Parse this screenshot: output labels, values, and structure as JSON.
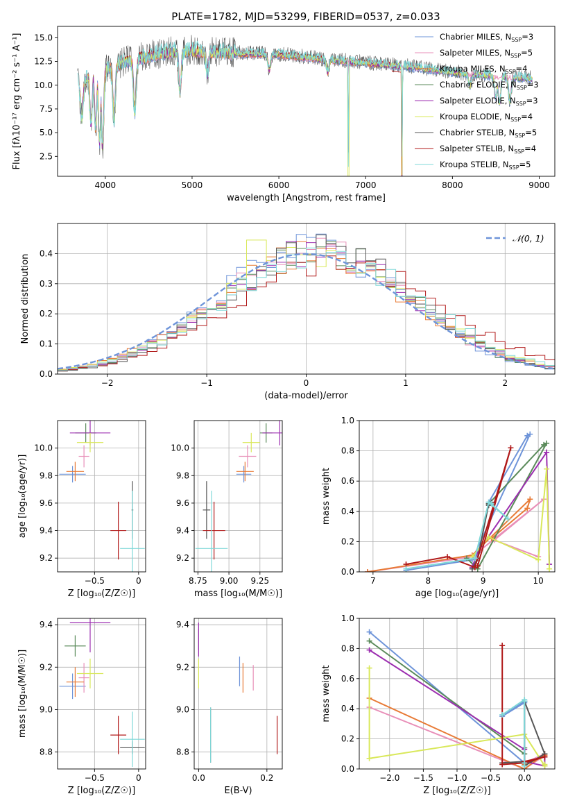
{
  "figure": {
    "title": "PLATE=1782, MJD=53299, FIBERID=0537, z=0.033"
  },
  "chart_data": [
    {
      "type": "line",
      "id": "spectrum",
      "title": "PLATE=1782, MJD=53299, FIBERID=0537, z=0.033",
      "xlabel": "wavelength [Angstrom, rest frame]",
      "ylabel": "Flux [fλ10⁻¹⁷ erg cm⁻² s⁻¹ A⁻¹]",
      "xlim": [
        3450,
        9180
      ],
      "ylim": [
        0.4,
        16.2
      ],
      "xticks": [
        4000,
        5000,
        6000,
        7000,
        8000,
        9000
      ],
      "yticks": [
        2.5,
        5.0,
        7.5,
        10.0,
        12.5,
        15.0
      ],
      "grid": false,
      "legend_position": "top-right",
      "legend": [
        {
          "name": "Chabrier MILES, N",
          "sub": "SSP",
          "suffix": "=3",
          "color": "#6e94d9"
        },
        {
          "name": "Salpeter MILES, N",
          "sub": "SSP",
          "suffix": "=5",
          "color": "#e88fb8"
        },
        {
          "name": "Kroupa MILES, N",
          "sub": "SSP",
          "suffix": "=4",
          "color": "#e87a35"
        },
        {
          "name": "Chabrier ELODIE, N",
          "sub": "SSP",
          "suffix": "=3",
          "color": "#5a8a5a"
        },
        {
          "name": "Salpeter ELODIE, N",
          "sub": "SSP",
          "suffix": "=3",
          "color": "#9c2eb0"
        },
        {
          "name": "Kroupa ELODIE, N",
          "sub": "SSP",
          "suffix": "=4",
          "color": "#d9e85a"
        },
        {
          "name": "Chabrier STELIB, N",
          "sub": "SSP",
          "suffix": "=5",
          "color": "#555555"
        },
        {
          "name": "Salpeter STELIB, N",
          "sub": "SSP",
          "suffix": "=4",
          "color": "#b01818"
        },
        {
          "name": "Kroupa STELIB, N",
          "sub": "SSP",
          "suffix": "=5",
          "color": "#7fd8d8"
        }
      ],
      "continuum": [
        [
          3700,
          9.5
        ],
        [
          3800,
          11
        ],
        [
          4000,
          11.8
        ],
        [
          4300,
          12.6
        ],
        [
          4700,
          13.4
        ],
        [
          5000,
          13.6
        ],
        [
          5300,
          13.4
        ],
        [
          5600,
          13.3
        ],
        [
          6000,
          13.2
        ],
        [
          6500,
          12.7
        ],
        [
          7000,
          12.3
        ],
        [
          7500,
          11.9
        ],
        [
          8000,
          11.3
        ],
        [
          8500,
          10.9
        ],
        [
          9000,
          10.6
        ],
        [
          9180,
          10.5
        ]
      ],
      "absorption": [
        [
          3730,
          6.5
        ],
        [
          3835,
          6.0
        ],
        [
          3889,
          5.5
        ],
        [
          3934,
          4.0
        ],
        [
          3968,
          3.5
        ],
        [
          4102,
          6.2
        ],
        [
          4340,
          7.0
        ],
        [
          4861,
          9.2
        ],
        [
          5175,
          11.2
        ],
        [
          5890,
          11.6
        ],
        [
          6563,
          11.4
        ],
        [
          6800,
          1.0
        ],
        [
          7420,
          0.4
        ],
        [
          8200,
          9.8
        ],
        [
          8500,
          8.5
        ],
        [
          8542,
          8.0
        ],
        [
          8662,
          8.2
        ]
      ]
    },
    {
      "type": "step",
      "id": "residuals",
      "xlabel": "(data-model)/error",
      "ylabel": "Normed distribution",
      "xlim": [
        -2.5,
        2.5
      ],
      "ylim": [
        0,
        0.5
      ],
      "xticks": [
        -2,
        -1,
        0,
        1,
        2
      ],
      "yticks": [
        0.0,
        0.1,
        0.2,
        0.3,
        0.4
      ],
      "grid": true,
      "bin_width": 0.1,
      "legend": [
        {
          "name": "𝒩(0, 1)",
          "color": "#6e94d9",
          "style": "dashed"
        }
      ]
    },
    {
      "type": "scatter",
      "id": "age-vs-Z",
      "xlabel": "Z [log₁₀(Z/Z☉)]",
      "ylabel": "age  [log₁₀(age/yr)]",
      "xlim": [
        -0.92,
        0.08
      ],
      "ylim": [
        9.1,
        10.2
      ],
      "xticks": [
        -0.5,
        0.0
      ],
      "yticks": [
        9.2,
        9.4,
        9.6,
        9.8,
        10.0
      ],
      "grid": true,
      "points": [
        {
          "x": -0.75,
          "y": 9.81,
          "xerr": 0.15,
          "yerr": 0.06,
          "color": "#6e94d9"
        },
        {
          "x": -0.62,
          "y": 9.94,
          "xerr": 0.06,
          "yerr": 0.08,
          "color": "#e88fb8"
        },
        {
          "x": -0.72,
          "y": 9.83,
          "xerr": 0.1,
          "yerr": 0.07,
          "color": "#e87a35"
        },
        {
          "x": -0.6,
          "y": 10.11,
          "xerr": 0.12,
          "yerr": 0.07,
          "color": "#5a8a5a"
        },
        {
          "x": -0.55,
          "y": 10.11,
          "xerr": 0.23,
          "yerr": 0.09,
          "color": "#9c2eb0"
        },
        {
          "x": -0.55,
          "y": 10.04,
          "xerr": 0.15,
          "yerr": 0.07,
          "color": "#d9e85a"
        },
        {
          "x": -0.07,
          "y": 9.55,
          "xerr": 0.01,
          "yerr": 0.21,
          "color": "#555555"
        },
        {
          "x": -0.23,
          "y": 9.4,
          "xerr": 0.09,
          "yerr": 0.21,
          "color": "#b01818"
        },
        {
          "x": -0.07,
          "y": 9.27,
          "xerr": 0.14,
          "yerr": 0.42,
          "color": "#7fd8d8"
        }
      ]
    },
    {
      "type": "scatter",
      "id": "age-vs-mass",
      "xlabel": "mass [log₁₀(M/M☉)]",
      "ylabel": "",
      "xlim": [
        8.72,
        9.43
      ],
      "ylim": [
        9.1,
        10.2
      ],
      "xticks": [
        8.75,
        9.0,
        9.25
      ],
      "yticks": [
        9.2,
        9.4,
        9.6,
        9.8,
        10.0
      ],
      "grid": true,
      "points": [
        {
          "x": 9.12,
          "y": 9.81,
          "xerr": 0.06,
          "yerr": 0.06,
          "color": "#6e94d9"
        },
        {
          "x": 9.15,
          "y": 9.94,
          "xerr": 0.07,
          "yerr": 0.08,
          "color": "#e88fb8"
        },
        {
          "x": 9.13,
          "y": 9.83,
          "xerr": 0.07,
          "yerr": 0.07,
          "color": "#e87a35"
        },
        {
          "x": 9.3,
          "y": 10.11,
          "xerr": 0.05,
          "yerr": 0.07,
          "color": "#5a8a5a"
        },
        {
          "x": 9.41,
          "y": 10.11,
          "xerr": 0.14,
          "yerr": 0.09,
          "color": "#9c2eb0"
        },
        {
          "x": 9.18,
          "y": 10.04,
          "xerr": 0.07,
          "yerr": 0.07,
          "color": "#d9e85a"
        },
        {
          "x": 8.82,
          "y": 9.55,
          "xerr": 0.03,
          "yerr": 0.21,
          "color": "#555555"
        },
        {
          "x": 8.88,
          "y": 9.4,
          "xerr": 0.09,
          "yerr": 0.21,
          "color": "#b01818"
        },
        {
          "x": 8.86,
          "y": 9.27,
          "xerr": 0.13,
          "yerr": 0.42,
          "color": "#7fd8d8"
        }
      ]
    },
    {
      "type": "line",
      "id": "weight-vs-age",
      "xlabel": "age  [log₁₀(age/yr)]",
      "ylabel": "mass weight",
      "xlim": [
        6.75,
        10.3
      ],
      "ylim": [
        0,
        1
      ],
      "xticks": [
        7,
        8,
        9,
        10
      ],
      "yticks": [
        0.0,
        0.2,
        0.4,
        0.6,
        0.8,
        1.0
      ],
      "grid": true,
      "series": [
        {
          "color": "#6e94d9",
          "x": [
            7.6,
            8.8,
            9.85,
            9.8,
            9.1
          ],
          "y": [
            0.01,
            0.08,
            0.91,
            0.9,
            0.46
          ]
        },
        {
          "color": "#e88fb8",
          "x": [
            6.9,
            8.8,
            10.1,
            9.2,
            10.0
          ],
          "y": [
            0.0,
            0.1,
            0.48,
            0.21,
            0.1
          ]
        },
        {
          "color": "#e87a35",
          "x": [
            6.9,
            8.8,
            9.85,
            9.8,
            9.15
          ],
          "y": [
            0.0,
            0.11,
            0.48,
            0.42,
            0.22
          ]
        },
        {
          "color": "#5a8a5a",
          "x": [
            8.7,
            8.9,
            10.15,
            10.1,
            9.1
          ],
          "y": [
            0.09,
            0.02,
            0.85,
            0.84,
            0.45
          ]
        },
        {
          "color": "#9c2eb0",
          "x": [
            8.8,
            8.9,
            10.15,
            10.2,
            10.15
          ],
          "y": [
            0.03,
            0.13,
            0.79,
            0.05,
            0.79
          ]
        },
        {
          "color": "#d9e85a",
          "x": [
            8.8,
            9.1,
            10.0,
            10.15,
            10.2
          ],
          "y": [
            0.1,
            0.23,
            0.08,
            0.68,
            0.02
          ]
        },
        {
          "color": "#555555",
          "x": [
            8.8,
            8.9,
            9.1,
            9.15,
            9.1
          ],
          "y": [
            0.02,
            0.09,
            0.45,
            0.46,
            0.44
          ]
        },
        {
          "color": "#b01818",
          "x": [
            7.6,
            8.35,
            8.85,
            9.5,
            8.9
          ],
          "y": [
            0.05,
            0.1,
            0.03,
            0.82,
            0.04
          ]
        },
        {
          "color": "#7fd8d8",
          "x": [
            7.6,
            8.85,
            9.1,
            9.45,
            9.15
          ],
          "y": [
            0.02,
            0.09,
            0.46,
            0.35,
            0.45
          ]
        }
      ]
    },
    {
      "type": "scatter",
      "id": "mass-vs-Z",
      "xlabel": "Z [log₁₀(Z/Z☉)]",
      "ylabel": "mass [log₁₀(M/M☉)]",
      "xlim": [
        -0.92,
        0.08
      ],
      "ylim": [
        8.72,
        9.43
      ],
      "xticks": [
        -0.5,
        0.0
      ],
      "yticks": [
        8.8,
        9.0,
        9.2,
        9.4
      ],
      "grid": true,
      "points": [
        {
          "x": -0.75,
          "y": 9.11,
          "xerr": 0.15,
          "yerr": 0.06,
          "color": "#6e94d9"
        },
        {
          "x": -0.62,
          "y": 9.15,
          "xerr": 0.06,
          "yerr": 0.07,
          "color": "#e88fb8"
        },
        {
          "x": -0.72,
          "y": 9.13,
          "xerr": 0.1,
          "yerr": 0.07,
          "color": "#e87a35"
        },
        {
          "x": -0.72,
          "y": 9.3,
          "xerr": 0.12,
          "yerr": 0.05,
          "color": "#5a8a5a"
        },
        {
          "x": -0.55,
          "y": 9.41,
          "xerr": 0.23,
          "yerr": 0.14,
          "color": "#9c2eb0"
        },
        {
          "x": -0.55,
          "y": 9.17,
          "xerr": 0.15,
          "yerr": 0.07,
          "color": "#d9e85a"
        },
        {
          "x": -0.07,
          "y": 8.82,
          "xerr": 0.14,
          "yerr": 0.03,
          "color": "#555555"
        },
        {
          "x": -0.23,
          "y": 8.88,
          "xerr": 0.09,
          "yerr": 0.09,
          "color": "#b01818"
        },
        {
          "x": -0.07,
          "y": 8.86,
          "xerr": 0.14,
          "yerr": 0.13,
          "color": "#7fd8d8"
        }
      ]
    },
    {
      "type": "scatter",
      "id": "mass-vs-EBV",
      "xlabel": "E(B-V)",
      "ylabel": "",
      "xlim": [
        -0.013,
        0.245
      ],
      "ylim": [
        8.72,
        9.43
      ],
      "xticks": [
        0.0,
        0.2
      ],
      "yticks": [
        8.8,
        9.0,
        9.2,
        9.4
      ],
      "grid": true,
      "points": [
        {
          "x": 0.12,
          "y": 9.18,
          "xerr": 0.0,
          "yerr": 0.07,
          "color": "#6e94d9"
        },
        {
          "x": 0.16,
          "y": 9.15,
          "xerr": 0.0,
          "yerr": 0.06,
          "color": "#e88fb8"
        },
        {
          "x": 0.13,
          "y": 9.15,
          "xerr": 0.0,
          "yerr": 0.07,
          "color": "#e87a35"
        },
        {
          "x": 0.0,
          "y": 9.33,
          "xerr": 0.0,
          "yerr": 0.05,
          "color": "#5a8a5a"
        },
        {
          "x": 0.0,
          "y": 9.33,
          "xerr": 0.0,
          "yerr": 0.08,
          "color": "#9c2eb0"
        },
        {
          "x": 0.0,
          "y": 9.17,
          "xerr": 0.0,
          "yerr": 0.07,
          "color": "#d9e85a"
        },
        {
          "x": 0.035,
          "y": 8.88,
          "xerr": 0.0,
          "yerr": 0.13,
          "color": "#555555"
        },
        {
          "x": 0.23,
          "y": 8.88,
          "xerr": 0.0,
          "yerr": 0.09,
          "color": "#b01818"
        },
        {
          "x": 0.035,
          "y": 8.88,
          "xerr": 0.0,
          "yerr": 0.13,
          "color": "#7fd8d8"
        }
      ]
    },
    {
      "type": "line",
      "id": "weight-vs-Z",
      "xlabel": "Z [log₁₀(Z/Z☉)]",
      "ylabel": "mass weight",
      "xlim": [
        -2.45,
        0.45
      ],
      "ylim": [
        0,
        1
      ],
      "xticks": [
        -2.0,
        -1.5,
        -1.0,
        -0.5,
        0.0
      ],
      "yticks": [
        0.0,
        0.2,
        0.4,
        0.6,
        0.8,
        1.0
      ],
      "grid": true,
      "series": [
        {
          "color": "#6e94d9",
          "x": [
            -2.3,
            0.0,
            0.0,
            -0.33,
            0.0
          ],
          "y": [
            0.91,
            0.04,
            0.44,
            0.35,
            0.45
          ]
        },
        {
          "color": "#e88fb8",
          "x": [
            -2.3,
            0.0,
            0.3,
            0.3,
            0.0
          ],
          "y": [
            0.41,
            0.0,
            0.09,
            0.1,
            0.04
          ]
        },
        {
          "color": "#e87a35",
          "x": [
            -2.3,
            0.0,
            0.3,
            0.3,
            0.0
          ],
          "y": [
            0.47,
            0.0,
            0.1,
            0.09,
            0.03
          ]
        },
        {
          "color": "#5a8a5a",
          "x": [
            -2.3,
            0.0,
            0.0,
            0.0,
            0.0
          ],
          "y": [
            0.85,
            0.1,
            0.14,
            0.04,
            0.02
          ]
        },
        {
          "color": "#9c2eb0",
          "x": [
            -2.3,
            0.0,
            0.0,
            0.3,
            0.3
          ],
          "y": [
            0.79,
            0.13,
            0.05,
            0.02,
            0.08
          ]
        },
        {
          "color": "#d9e85a",
          "x": [
            -2.3,
            -2.3,
            0.0,
            0.3,
            0.3
          ],
          "y": [
            0.67,
            0.07,
            0.23,
            0.02,
            0.03
          ]
        },
        {
          "color": "#555555",
          "x": [
            -0.33,
            0.0,
            0.0,
            0.3,
            0.0
          ],
          "y": [
            0.04,
            0.05,
            0.45,
            0.1,
            0.02
          ]
        },
        {
          "color": "#b01818",
          "x": [
            -0.33,
            -0.33,
            0.0,
            0.3,
            0.0
          ],
          "y": [
            0.82,
            0.03,
            0.04,
            0.08,
            0.05
          ]
        },
        {
          "color": "#7fd8d8",
          "x": [
            -0.33,
            0.0,
            0.0,
            0.0,
            0.0
          ],
          "y": [
            0.36,
            0.46,
            0.45,
            0.04,
            0.02
          ]
        }
      ]
    }
  ]
}
